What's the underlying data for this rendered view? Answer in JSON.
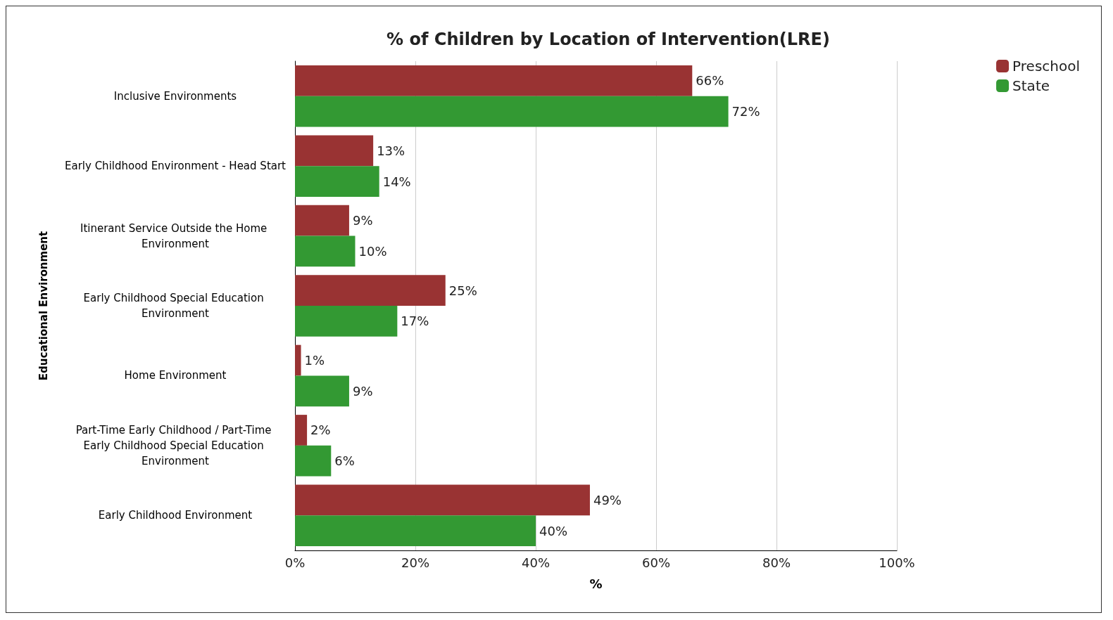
{
  "chart_data": {
    "type": "bar",
    "orientation": "horizontal",
    "title": "% of Children by Location of Intervention(LRE)",
    "xlabel": "%",
    "ylabel": "Educational Environment",
    "categories": [
      "Inclusive Environments",
      "Early Childhood Environment - Head Start",
      "Itinerant Service Outside the Home Environment",
      "Early Childhood Special Education Environment",
      "Home Environment",
      "Part-Time Early Childhood / Part-Time Early Childhood Special Education Environment",
      "Early Childhood Environment"
    ],
    "series": [
      {
        "name": "Preschool",
        "color": "#993333",
        "values": [
          66,
          13,
          9,
          25,
          1,
          2,
          49
        ],
        "value_labels": [
          "66%",
          "13%",
          "9%",
          "25%",
          "1%",
          "2%",
          "49%"
        ]
      },
      {
        "name": "State",
        "color": "#339933",
        "values": [
          72,
          14,
          10,
          17,
          9,
          6,
          40
        ],
        "value_labels": [
          "72%",
          "14%",
          "10%",
          "17%",
          "9%",
          "6%",
          "40%"
        ]
      }
    ],
    "xlim": [
      0,
      100
    ],
    "xticks": [
      {
        "value": 0,
        "label": "0%"
      },
      {
        "value": 20,
        "label": "20%"
      },
      {
        "value": 40,
        "label": "40%"
      },
      {
        "value": 60,
        "label": "60%"
      },
      {
        "value": 80,
        "label": "80%"
      },
      {
        "value": 100,
        "label": "100%"
      }
    ],
    "grid": "x",
    "legend": "top right"
  }
}
